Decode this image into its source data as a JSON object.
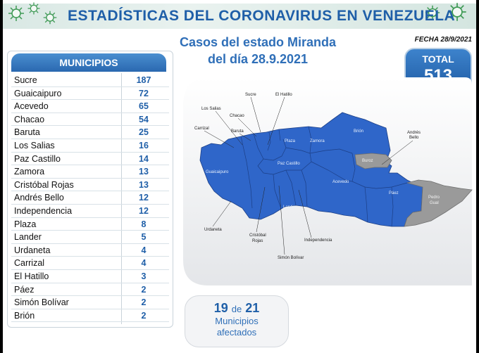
{
  "header": {
    "title": "ESTADÍSTICAS DEL CORONAVIRUS EN VENEZUELA"
  },
  "subtitle": {
    "line1": "Casos del estado Miranda",
    "line2": "del día 28.9.2021"
  },
  "date": "FECHA 28/9/2021",
  "total": {
    "label": "TOTAL",
    "value": "513"
  },
  "municipios": {
    "header": "MUNICIPIOS",
    "rows": [
      {
        "name": "Sucre",
        "count": "187"
      },
      {
        "name": "Guaicaipuro",
        "count": "72"
      },
      {
        "name": "Acevedo",
        "count": "65"
      },
      {
        "name": "Chacao",
        "count": "54"
      },
      {
        "name": "Baruta",
        "count": "25"
      },
      {
        "name": "Los Salias",
        "count": "16"
      },
      {
        "name": "Paz Castillo",
        "count": "14"
      },
      {
        "name": "Zamora",
        "count": "13"
      },
      {
        "name": "Cristóbal Rojas",
        "count": "13"
      },
      {
        "name": "Andrés Bello",
        "count": "12"
      },
      {
        "name": "Independencia",
        "count": "12"
      },
      {
        "name": "Plaza",
        "count": "8"
      },
      {
        "name": "Lander",
        "count": "5"
      },
      {
        "name": "Urdaneta",
        "count": "4"
      },
      {
        "name": "Carrizal",
        "count": "4"
      },
      {
        "name": "El Hatillo",
        "count": "3"
      },
      {
        "name": "Páez",
        "count": "2"
      },
      {
        "name": "Simón Bolívar",
        "count": "2"
      },
      {
        "name": "Brión",
        "count": "2"
      }
    ]
  },
  "map": {
    "labels": {
      "sucre": "Sucre",
      "el_hatillo": "El Hatillo",
      "los_salias": "Los Salias",
      "chacao": "Chacao",
      "carrizal": "Carrizal",
      "baruta": "Baruta",
      "plaza": "Plaza",
      "zamora": "Zamora",
      "brion": "Brión",
      "andres_bello_1": "Andrés",
      "andres_bello_2": "Bello",
      "buroz": "Buroz",
      "guaicaipuro": "Guaicaipuro",
      "paz_castillo": "Paz Castillo",
      "acevedo": "Acevedo",
      "paez": "Páez",
      "pedro_gual_1": "Pedro",
      "pedro_gual_2": "Gual",
      "lander": "Lander",
      "urdaneta": "Urdaneta",
      "cristobal_rojas_1": "Cristóbal",
      "cristobal_rojas_2": "Rojas",
      "independencia": "Independencia",
      "simon_bolivar": "Simón Bolívar"
    }
  },
  "affected": {
    "count": "19",
    "of": "de",
    "total": "21",
    "label1": "Municipios",
    "label2": "afectados"
  },
  "colors": {
    "title_blue": "#1f5fa8",
    "map_blue": "#2f66c9",
    "map_gray": "#9a9a9a",
    "virus_green": "#3f9a55"
  }
}
